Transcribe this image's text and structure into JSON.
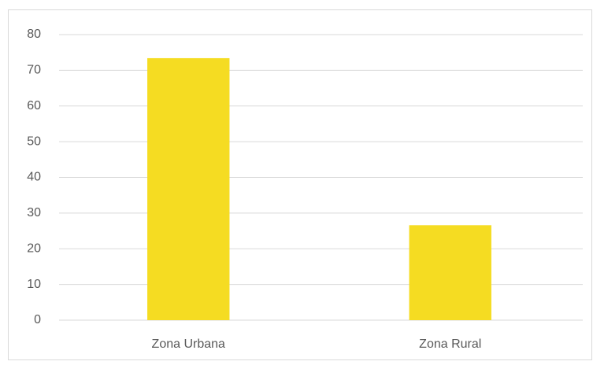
{
  "chart_data": {
    "type": "bar",
    "categories": [
      "Zona Urbana",
      "Zona Rural"
    ],
    "values": [
      73.4,
      26.6
    ],
    "color": "#f5dc22",
    "ylim": [
      0,
      80
    ],
    "yticks": [
      0,
      10,
      20,
      30,
      40,
      50,
      60,
      70,
      80
    ],
    "grid": true
  }
}
